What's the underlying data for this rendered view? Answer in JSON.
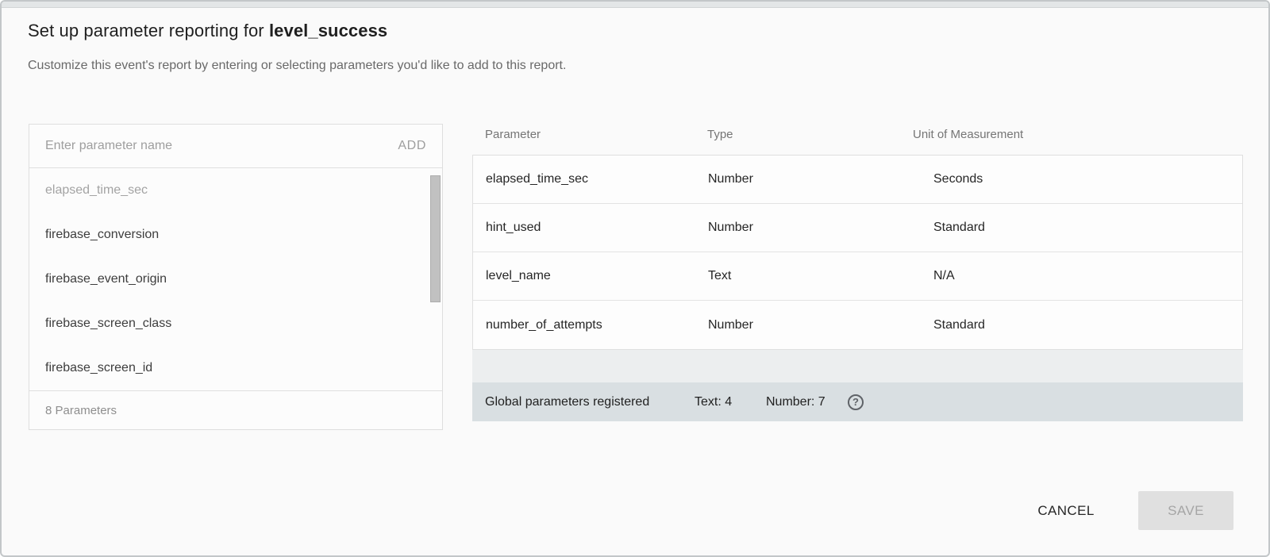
{
  "dialog": {
    "title_prefix": "Set up parameter reporting for ",
    "title_event": "level_success",
    "subtitle": "Customize this event's report by entering or selecting parameters you'd like to add to this report."
  },
  "parameter_picker": {
    "input_value": "",
    "input_placeholder": "Enter parameter name",
    "add_label": "ADD",
    "items": [
      {
        "label": "elapsed_time_sec",
        "disabled": true
      },
      {
        "label": "firebase_conversion",
        "disabled": false
      },
      {
        "label": "firebase_event_origin",
        "disabled": false
      },
      {
        "label": "firebase_screen_class",
        "disabled": false
      },
      {
        "label": "firebase_screen_id",
        "disabled": false
      }
    ],
    "footer_label": "8 Parameters"
  },
  "report_table": {
    "columns": [
      "Parameter",
      "Type",
      "Unit of Measurement"
    ],
    "rows": [
      {
        "parameter": "elapsed_time_sec",
        "type": "Number",
        "unit": "Seconds"
      },
      {
        "parameter": "hint_used",
        "type": "Number",
        "unit": "Standard"
      },
      {
        "parameter": "level_name",
        "type": "Text",
        "unit": "N/A"
      },
      {
        "parameter": "number_of_attempts",
        "type": "Number",
        "unit": "Standard"
      }
    ],
    "summary": {
      "label": "Global parameters registered",
      "text_count": "Text: 4",
      "number_count": "Number: 7",
      "help_icon_glyph": "?"
    }
  },
  "actions": {
    "cancel_label": "CANCEL",
    "save_label": "SAVE",
    "save_enabled": false
  },
  "colors": {
    "summary_row_bg": "#d9dfe2",
    "empty_row_bg": "#eceeef",
    "save_disabled_bg": "#e0e0e0",
    "muted_text": "#9e9e9e"
  }
}
